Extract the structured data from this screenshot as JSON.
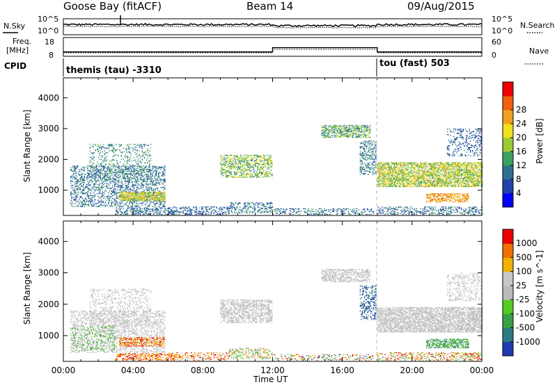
{
  "header": {
    "radar": "Goose Bay (fitACF)",
    "beam": "Beam 14",
    "date": "09/Aug/2015"
  },
  "colors": {
    "background": "#ffffff",
    "axis": "#000000",
    "dashed_marker": "#bbbbbb"
  },
  "noise_panel": {
    "left_label": "N.Sky",
    "right_label": "N.Search",
    "left_ticks": [
      "10^5",
      "10^0"
    ],
    "right_ticks": [
      "10^5",
      "10^0"
    ],
    "log_range": [
      0,
      5
    ],
    "sky_level_log": 3.2,
    "search_level_log": 2.6
  },
  "freq_panel": {
    "left_label_1": "Freq.",
    "left_label_2": "[MHz]",
    "right_label": "Nave",
    "left_ticks": [
      "18",
      "8"
    ],
    "right_ticks": [
      "60",
      "0"
    ],
    "freq_range": [
      8,
      18
    ],
    "nave_range": [
      0,
      60
    ],
    "freq_segments": [
      {
        "start_h": 0,
        "end_h": 12,
        "freq": 10.3
      },
      {
        "start_h": 12,
        "end_h": 18,
        "freq": 12.6
      },
      {
        "start_h": 18,
        "end_h": 24,
        "freq": 10.3
      }
    ],
    "nave_segments": [
      {
        "start_h": 0,
        "end_h": 12,
        "nave": 11
      },
      {
        "start_h": 12,
        "end_h": 18,
        "nave": 22
      },
      {
        "start_h": 18,
        "end_h": 24,
        "nave": 11
      }
    ]
  },
  "cpid_panel": {
    "label": "CPID",
    "modes": [
      {
        "name": "themis (tau) -3310",
        "start_h": 0
      },
      {
        "name": "tou (fast) 503",
        "start_h": 18
      }
    ]
  },
  "chart_data": [
    {
      "type": "heatmap",
      "panel": "power",
      "xlabel": "Time UT",
      "ylabel": "Slant Range [km]",
      "xlim_hours": [
        0,
        24
      ],
      "x_ticks": [
        "00:00",
        "04:00",
        "08:00",
        "12:00",
        "16:00",
        "20:00",
        "00:00"
      ],
      "ylim": [
        180,
        4650
      ],
      "y_ticks": [
        1000,
        2000,
        3000,
        4000
      ],
      "colorbar": {
        "label": "Power [dB]",
        "ticks": [
          "4",
          "8",
          "12",
          "16",
          "20",
          "24",
          "28"
        ],
        "range": [
          0,
          30
        ],
        "colors": [
          "#0000ff",
          "#2244aa",
          "#2e6f8e",
          "#3aa060",
          "#9bcc33",
          "#f0e020",
          "#f0a020",
          "#ef6010",
          "#ee0000"
        ]
      },
      "regions": [
        {
          "t": [
            0.4,
            5.8
          ],
          "r": [
            450,
            1800
          ],
          "v": [
            4,
            12
          ],
          "d": 0.35
        },
        {
          "t": [
            1.5,
            5.0
          ],
          "r": [
            1300,
            2500
          ],
          "v": [
            6,
            14
          ],
          "d": 0.22
        },
        {
          "t": [
            3.2,
            5.8
          ],
          "r": [
            650,
            950
          ],
          "v": [
            12,
            22
          ],
          "d": 0.75
        },
        {
          "t": [
            3.0,
            6.5
          ],
          "r": [
            200,
            420
          ],
          "v": [
            4,
            12
          ],
          "d": 0.45
        },
        {
          "t": [
            6.0,
            9.5
          ],
          "r": [
            200,
            450
          ],
          "v": [
            4,
            10
          ],
          "d": 0.35
        },
        {
          "t": [
            9.0,
            12.0
          ],
          "r": [
            1400,
            2150
          ],
          "v": [
            8,
            20
          ],
          "d": 0.5
        },
        {
          "t": [
            9.5,
            12.0
          ],
          "r": [
            250,
            600
          ],
          "v": [
            4,
            12
          ],
          "d": 0.35
        },
        {
          "t": [
            12.0,
            17.8
          ],
          "r": [
            200,
            400
          ],
          "v": [
            4,
            12
          ],
          "d": 0.3
        },
        {
          "t": [
            14.8,
            17.6
          ],
          "r": [
            2700,
            3100
          ],
          "v": [
            6,
            18
          ],
          "d": 0.6
        },
        {
          "t": [
            17.0,
            17.9
          ],
          "r": [
            1500,
            2600
          ],
          "v": [
            6,
            12
          ],
          "d": 0.35
        },
        {
          "t": [
            18.0,
            24.0
          ],
          "r": [
            1100,
            1900
          ],
          "v": [
            10,
            22
          ],
          "d": 0.7
        },
        {
          "t": [
            20.8,
            23.2
          ],
          "r": [
            600,
            900
          ],
          "v": [
            18,
            26
          ],
          "d": 0.6
        },
        {
          "t": [
            18.0,
            24.0
          ],
          "r": [
            200,
            450
          ],
          "v": [
            4,
            12
          ],
          "d": 0.35
        },
        {
          "t": [
            22.0,
            24.0
          ],
          "r": [
            2100,
            3000
          ],
          "v": [
            4,
            10
          ],
          "d": 0.25
        }
      ]
    },
    {
      "type": "heatmap",
      "panel": "velocity",
      "xlabel": "Time UT",
      "ylabel": "Slant Range [km]",
      "xlim_hours": [
        0,
        24
      ],
      "x_ticks": [
        "00:00",
        "04:00",
        "08:00",
        "12:00",
        "16:00",
        "20:00",
        "00:00"
      ],
      "ylim": [
        180,
        4650
      ],
      "y_ticks": [
        1000,
        2000,
        3000,
        4000
      ],
      "colorbar": {
        "label": "Velocity [m s^-1]",
        "ticks": [
          "1000",
          "500",
          "100",
          "25",
          "-25",
          "-100",
          "-500",
          "-1000"
        ],
        "colors": [
          "#1f3ab0",
          "#2e7a80",
          "#3aa048",
          "#55cc22",
          "#bbbbbb",
          "#c8c8c8",
          "#f2b000",
          "#f07000",
          "#ee0000"
        ]
      },
      "regions": [
        {
          "t": [
            0.4,
            5.8
          ],
          "r": [
            450,
            1800
          ],
          "c": [
            4,
            5
          ],
          "d": 0.35
        },
        {
          "t": [
            1.5,
            5.0
          ],
          "r": [
            1300,
            2500
          ],
          "c": [
            4,
            5
          ],
          "d": 0.22
        },
        {
          "t": [
            3.2,
            5.8
          ],
          "r": [
            650,
            950
          ],
          "c": [
            6,
            8
          ],
          "d": 0.5
        },
        {
          "t": [
            0.5,
            3.0
          ],
          "r": [
            500,
            1300
          ],
          "c": [
            2,
            3
          ],
          "d": 0.15
        },
        {
          "t": [
            3.0,
            6.5
          ],
          "r": [
            200,
            420
          ],
          "c": [
            6,
            8
          ],
          "d": 0.45
        },
        {
          "t": [
            6.0,
            9.5
          ],
          "r": [
            200,
            450
          ],
          "c": [
            5,
            8
          ],
          "d": 0.35
        },
        {
          "t": [
            9.0,
            12.0
          ],
          "r": [
            1400,
            2150
          ],
          "c": [
            4,
            5
          ],
          "d": 0.5
        },
        {
          "t": [
            9.5,
            12.0
          ],
          "r": [
            250,
            600
          ],
          "c": [
            2,
            7
          ],
          "d": 0.35
        },
        {
          "t": [
            12.0,
            17.8
          ],
          "r": [
            200,
            400
          ],
          "c": [
            0,
            8
          ],
          "d": 0.3
        },
        {
          "t": [
            14.8,
            17.6
          ],
          "r": [
            2700,
            3100
          ],
          "c": [
            4,
            5
          ],
          "d": 0.55
        },
        {
          "t": [
            17.0,
            17.9
          ],
          "r": [
            1500,
            2600
          ],
          "c": [
            0,
            1
          ],
          "d": 0.35
        },
        {
          "t": [
            18.0,
            24.0
          ],
          "r": [
            1100,
            1900
          ],
          "c": [
            4,
            5
          ],
          "d": 0.7
        },
        {
          "t": [
            20.8,
            23.2
          ],
          "r": [
            600,
            900
          ],
          "c": [
            1,
            3
          ],
          "d": 0.6
        },
        {
          "t": [
            18.0,
            24.0
          ],
          "r": [
            200,
            450
          ],
          "c": [
            3,
            8
          ],
          "d": 0.35
        },
        {
          "t": [
            22.0,
            24.0
          ],
          "r": [
            2100,
            3000
          ],
          "c": [
            4,
            5
          ],
          "d": 0.25
        }
      ]
    }
  ]
}
